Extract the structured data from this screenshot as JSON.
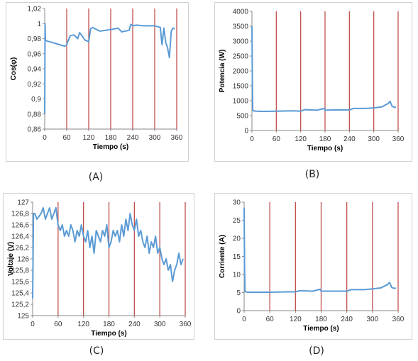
{
  "captions": [
    "(A)",
    "(B)",
    "(C)",
    "(D)"
  ],
  "colors": {
    "series": "#5b9bd5",
    "marker_line": "#c0504d",
    "axis": "#888888"
  },
  "chart_data": [
    {
      "type": "line",
      "xlabel": "Tiempo (s)",
      "ylabel": "Cos(φ)",
      "xticks": [
        "0",
        "60",
        "120",
        "180",
        "240",
        "300",
        "360"
      ],
      "yticks": [
        "0,86",
        "0,88",
        "0,9",
        "0,92",
        "0,94",
        "0,96",
        "0,98",
        "1",
        "1,02"
      ],
      "xlim": [
        0,
        360
      ],
      "ylim": [
        0.86,
        1.02
      ],
      "vlines": [
        60,
        120,
        180,
        240,
        300,
        360
      ],
      "x": [
        0,
        1,
        2,
        5,
        20,
        40,
        55,
        60,
        62,
        70,
        80,
        90,
        95,
        100,
        110,
        120,
        125,
        130,
        150,
        180,
        200,
        210,
        230,
        235,
        240,
        250,
        270,
        300,
        315,
        320,
        325,
        330,
        335,
        340,
        345,
        350,
        355
      ],
      "y": [
        0.88,
        1.0,
        0.978,
        0.977,
        0.975,
        0.972,
        0.97,
        0.972,
        0.975,
        0.984,
        0.985,
        0.98,
        0.988,
        0.985,
        0.978,
        0.976,
        0.993,
        0.995,
        0.99,
        0.992,
        0.994,
        0.989,
        0.991,
        0.999,
        0.997,
        0.998,
        0.997,
        0.997,
        0.995,
        0.972,
        0.994,
        0.975,
        0.968,
        0.955,
        0.99,
        0.994,
        0.993
      ]
    },
    {
      "type": "line",
      "xlabel": "Tiempo (s)",
      "ylabel": "Potencia (W)",
      "xticks": [
        "0",
        "60",
        "120",
        "180",
        "240",
        "300",
        "360"
      ],
      "yticks": [
        "0",
        "500",
        "1000",
        "1500",
        "2000",
        "2500",
        "3000",
        "3500",
        "4000"
      ],
      "xlim": [
        0,
        360
      ],
      "ylim": [
        0,
        4000
      ],
      "vlines": [
        60,
        120,
        180,
        240,
        300,
        360
      ],
      "x": [
        0,
        1,
        2,
        3,
        10,
        30,
        60,
        100,
        120,
        130,
        160,
        178,
        180,
        200,
        240,
        250,
        280,
        300,
        320,
        330,
        335,
        340,
        345,
        350,
        355
      ],
      "y": [
        3500,
        1600,
        700,
        660,
        650,
        640,
        650,
        660,
        650,
        700,
        680,
        740,
        680,
        690,
        690,
        740,
        740,
        760,
        790,
        870,
        900,
        980,
        820,
        780,
        780
      ]
    },
    {
      "type": "line",
      "xlabel": "Tiempo (s)",
      "ylabel": "Voltaje (V)",
      "xticks": [
        "0",
        "60",
        "120",
        "180",
        "240",
        "300",
        "360"
      ],
      "yticks": [
        "125",
        "125,2",
        "125,4",
        "125,6",
        "125,8",
        "126",
        "126,2",
        "126,4",
        "126,6",
        "126,8",
        "127"
      ],
      "xlim": [
        0,
        360
      ],
      "ylim": [
        125,
        127
      ],
      "vlines": [
        60,
        120,
        180,
        240,
        300,
        360
      ],
      "x": [
        0,
        2,
        5,
        10,
        20,
        25,
        30,
        35,
        40,
        45,
        50,
        55,
        60,
        65,
        70,
        75,
        80,
        85,
        90,
        95,
        100,
        105,
        110,
        115,
        120,
        125,
        130,
        135,
        140,
        145,
        150,
        155,
        160,
        165,
        170,
        175,
        180,
        185,
        190,
        195,
        200,
        205,
        210,
        215,
        220,
        225,
        230,
        235,
        240,
        245,
        250,
        255,
        260,
        265,
        270,
        275,
        280,
        285,
        290,
        295,
        300,
        305,
        310,
        315,
        320,
        325,
        330,
        335,
        340,
        345,
        350,
        355
      ],
      "y": [
        125.3,
        126.8,
        126.8,
        126.7,
        126.8,
        126.9,
        126.7,
        126.8,
        126.9,
        126.7,
        126.8,
        126.9,
        126.6,
        126.5,
        126.6,
        126.4,
        126.5,
        126.4,
        126.6,
        126.5,
        126.3,
        126.5,
        126.4,
        126.6,
        126.4,
        126.3,
        126.5,
        126.2,
        126.4,
        126.1,
        126.5,
        126.4,
        126.3,
        126.5,
        126.4,
        126.6,
        126.2,
        126.3,
        126.5,
        126.4,
        126.5,
        126.3,
        126.6,
        126.4,
        126.7,
        126.5,
        126.8,
        126.6,
        126.5,
        126.7,
        126.4,
        126.5,
        126.3,
        126.2,
        126.4,
        126.1,
        126.3,
        126.2,
        126.4,
        126.1,
        126.2,
        126.0,
        125.9,
        126.0,
        125.8,
        125.9,
        125.6,
        125.8,
        125.9,
        126.1,
        125.9,
        126.0
      ]
    },
    {
      "type": "line",
      "xlabel": "Tiempo (s)",
      "ylabel": "Corriente (A)",
      "xticks": [
        "0",
        "60",
        "120",
        "180",
        "240",
        "300",
        "360"
      ],
      "yticks": [
        "0",
        "5",
        "10",
        "15",
        "20",
        "25",
        "30"
      ],
      "xlim": [
        0,
        360
      ],
      "ylim": [
        0,
        30
      ],
      "vlines": [
        60,
        120,
        180,
        240,
        300,
        360
      ],
      "x": [
        0,
        1,
        2,
        3,
        10,
        30,
        60,
        100,
        120,
        130,
        160,
        178,
        180,
        200,
        240,
        250,
        280,
        300,
        320,
        330,
        335,
        340,
        345,
        350,
        355
      ],
      "y": [
        28.5,
        12,
        5.5,
        5.2,
        5.1,
        5.1,
        5.1,
        5.2,
        5.2,
        5.5,
        5.4,
        5.9,
        5.4,
        5.4,
        5.4,
        5.8,
        5.8,
        6.0,
        6.3,
        6.9,
        7.2,
        7.8,
        6.4,
        6.2,
        6.2
      ]
    }
  ]
}
